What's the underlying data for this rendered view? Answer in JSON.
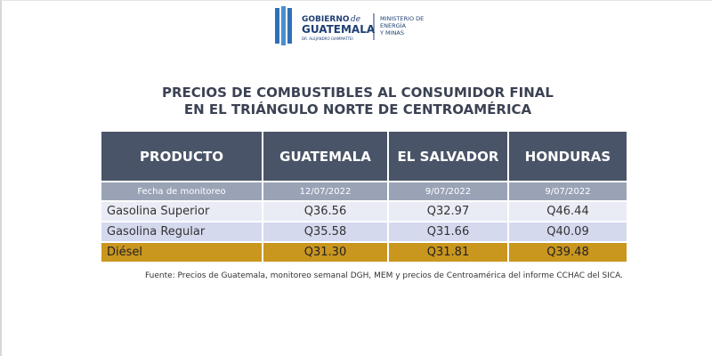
{
  "header": {
    "logo": {
      "line1": "GOBIERNO",
      "script": "de",
      "line2": "GUATEMALA",
      "sub": "DR. ALEJANDRO GIAMMATTEI"
    },
    "ministry": [
      "MINISTERIO DE",
      "ENERGÍA",
      "Y MINAS"
    ]
  },
  "title": [
    "PRECIOS DE COMBUSTIBLES AL CONSUMIDOR FINAL",
    "EN EL TRIÁNGULO NORTE DE CENTROAMÉRICA"
  ],
  "table": {
    "columns": [
      "PRODUCTO",
      "GUATEMALA",
      "EL SALVADOR",
      "HONDURAS"
    ],
    "dates": [
      "Fecha de monitoreo",
      "12/07/2022",
      "9/07/2022",
      "9/07/2022"
    ],
    "rows": [
      [
        "Gasolina Superior",
        "Q36.56",
        "Q32.97",
        "Q46.44"
      ],
      [
        "Gasolina Regular",
        "Q35.58",
        "Q31.66",
        "Q40.09"
      ],
      [
        "Diésel",
        "Q31.30",
        "Q31.81",
        "Q39.48"
      ]
    ]
  },
  "source": "Fuente: Precios de Guatemala, monitoreo semanal DGH, MEM y precios de Centroamérica del informe CCHAC del SICA."
}
